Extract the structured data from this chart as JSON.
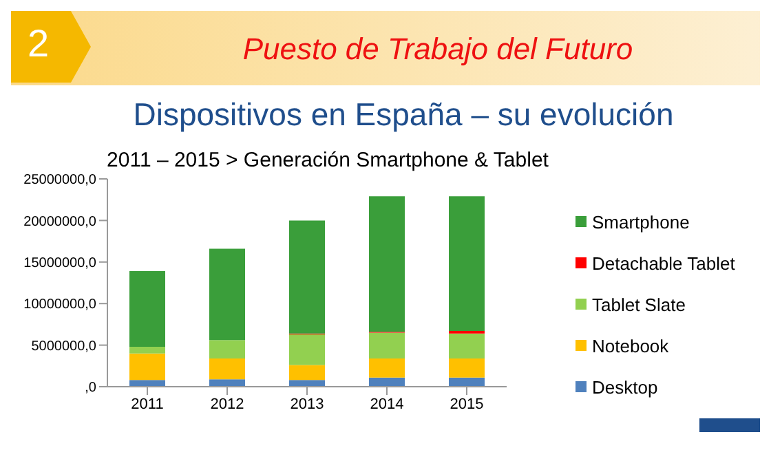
{
  "chart_data": {
    "type": "bar",
    "stacked": true,
    "annotations": [
      "2",
      "Puesto de Trabajo  del Futuro"
    ],
    "title": "Dispositivos en España – su evolución",
    "subtitle": "2011 – 2015 > Generación Smartphone & Tablet",
    "categories": [
      "2011",
      "2012",
      "2013",
      "2014",
      "2015"
    ],
    "series": [
      {
        "name": "Desktop",
        "color": "#4f81bd",
        "values": [
          800000,
          900000,
          800000,
          1100000,
          1100000
        ]
      },
      {
        "name": "Notebook",
        "color": "#ffc000",
        "values": [
          3200000,
          2500000,
          1800000,
          2300000,
          2300000
        ]
      },
      {
        "name": "Tablet Slate",
        "color": "#92d050",
        "values": [
          800000,
          2200000,
          3700000,
          3100000,
          3000000
        ]
      },
      {
        "name": "Detachable Tablet",
        "color": "#ff0000",
        "values": [
          0,
          0,
          100000,
          100000,
          300000
        ]
      },
      {
        "name": "Smartphone",
        "color": "#3a9e3a",
        "values": [
          9100000,
          11000000,
          13600000,
          16300000,
          16200000
        ]
      }
    ],
    "ylim": [
      0,
      25000000
    ],
    "yticks": [
      {
        "value": 0,
        "label": ",0"
      },
      {
        "value": 5000000,
        "label": "5000000,0"
      },
      {
        "value": 10000000,
        "label": "10000000,0"
      },
      {
        "value": 15000000,
        "label": "15000000,0"
      },
      {
        "value": 20000000,
        "label": "20000000,0"
      },
      {
        "value": 25000000,
        "label": "25000000,0"
      }
    ],
    "legend": "right"
  }
}
